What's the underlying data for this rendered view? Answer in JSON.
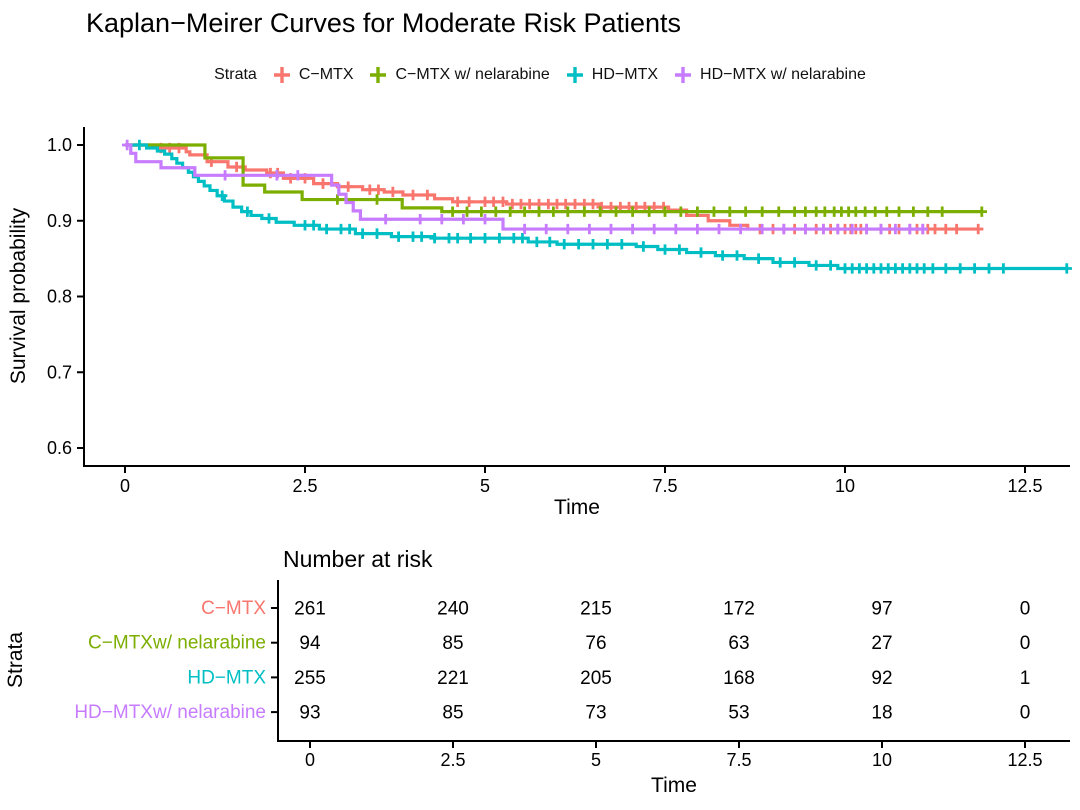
{
  "title": "Kaplan−Meirer Curves for Moderate Risk Patients",
  "legend": {
    "title": "Strata",
    "items": [
      {
        "label": "C−MTX",
        "color": "#F8766D"
      },
      {
        "label": "C−MTX w/ nelarabine",
        "color": "#7CAE00"
      },
      {
        "label": "HD−MTX",
        "color": "#00BFC4"
      },
      {
        "label": "HD−MTX w/ nelarabine",
        "color": "#C77CFF"
      }
    ]
  },
  "chart_data": {
    "type": "line",
    "subtype": "kaplan-meier-step",
    "title": "Kaplan−Meirer Curves for Moderate Risk Patients",
    "xlabel": "Time",
    "ylabel": "Survival probability",
    "xlim": [
      -0.6,
      13.3
    ],
    "ylim": [
      0.58,
      1.01
    ],
    "xticks": [
      0,
      2.5,
      5,
      7.5,
      10,
      12.5
    ],
    "xtick_labels": [
      "0",
      "2.5",
      "5",
      "7.5",
      "10",
      "12.5"
    ],
    "yticks": [
      1.0,
      0.9,
      0.8,
      0.7,
      0.6
    ],
    "ytick_labels": [
      "1.0",
      "0.9",
      "0.8",
      "0.7",
      "0.6"
    ],
    "grid": false,
    "legend_position": "top",
    "series": [
      {
        "name": "C−MTX",
        "color": "#F8766D",
        "steps": [
          [
            0,
            1.0
          ],
          [
            0.45,
            0.996
          ],
          [
            0.85,
            0.991
          ],
          [
            0.9,
            0.987
          ],
          [
            1.14,
            0.978
          ],
          [
            1.43,
            0.971
          ],
          [
            1.67,
            0.967
          ],
          [
            1.97,
            0.963
          ],
          [
            2.2,
            0.956
          ],
          [
            2.62,
            0.949
          ],
          [
            2.95,
            0.945
          ],
          [
            3.3,
            0.941
          ],
          [
            3.6,
            0.938
          ],
          [
            3.86,
            0.934
          ],
          [
            4.3,
            0.929
          ],
          [
            4.55,
            0.925
          ],
          [
            5.3,
            0.922
          ],
          [
            6.6,
            0.918
          ],
          [
            7.55,
            0.914
          ],
          [
            7.8,
            0.907
          ],
          [
            8.1,
            0.9
          ],
          [
            8.4,
            0.894
          ],
          [
            8.65,
            0.889
          ],
          [
            11.85,
            0.889
          ]
        ],
        "censor_times": [
          0.5,
          0.62,
          0.75,
          1.2,
          1.55,
          2.02,
          2.12,
          2.3,
          2.5,
          2.75,
          3.1,
          3.4,
          3.52,
          3.72,
          4.0,
          4.2,
          4.62,
          4.78,
          5.0,
          5.12,
          5.25,
          5.38,
          5.5,
          5.62,
          5.75,
          5.88,
          6.0,
          6.12,
          6.25,
          6.38,
          6.5,
          6.62,
          6.75,
          6.88,
          7.0,
          7.1,
          7.22,
          7.35,
          7.48,
          8.82,
          9.0,
          9.15,
          9.3,
          9.45,
          9.6,
          9.7,
          9.8,
          9.9,
          10.0,
          10.08,
          10.15,
          10.22,
          10.3,
          10.5,
          10.62,
          10.75,
          10.9,
          11.0,
          11.08,
          11.15,
          11.25,
          11.4,
          11.55,
          11.85
        ]
      },
      {
        "name": "C−MTX w/ nelarabine",
        "color": "#7CAE00",
        "steps": [
          [
            0,
            1.0
          ],
          [
            1.11,
            0.983
          ],
          [
            1.64,
            0.947
          ],
          [
            1.94,
            0.938
          ],
          [
            2.46,
            0.928
          ],
          [
            3.85,
            0.917
          ],
          [
            4.4,
            0.912
          ],
          [
            11.9,
            0.912
          ]
        ],
        "censor_times": [
          2.95,
          3.5,
          4.55,
          4.75,
          4.95,
          5.15,
          5.35,
          5.55,
          5.75,
          5.95,
          6.15,
          6.38,
          6.6,
          6.82,
          7.05,
          7.28,
          7.5,
          7.72,
          7.95,
          8.18,
          8.4,
          8.62,
          8.85,
          9.08,
          9.3,
          9.45,
          9.6,
          9.72,
          9.85,
          9.95,
          10.05,
          10.15,
          10.28,
          10.42,
          10.58,
          10.75,
          10.95,
          11.15,
          11.35,
          11.9
        ]
      },
      {
        "name": "HD−MTX",
        "color": "#00BFC4",
        "steps": [
          [
            0,
            1.0
          ],
          [
            0.3,
            0.996
          ],
          [
            0.45,
            0.992
          ],
          [
            0.55,
            0.988
          ],
          [
            0.65,
            0.982
          ],
          [
            0.72,
            0.976
          ],
          [
            0.8,
            0.97
          ],
          [
            0.88,
            0.964
          ],
          [
            0.95,
            0.958
          ],
          [
            1.02,
            0.952
          ],
          [
            1.1,
            0.946
          ],
          [
            1.18,
            0.94
          ],
          [
            1.28,
            0.933
          ],
          [
            1.38,
            0.926
          ],
          [
            1.5,
            0.918
          ],
          [
            1.62,
            0.912
          ],
          [
            1.75,
            0.907
          ],
          [
            1.9,
            0.903
          ],
          [
            2.1,
            0.898
          ],
          [
            2.35,
            0.894
          ],
          [
            2.7,
            0.889
          ],
          [
            3.2,
            0.883
          ],
          [
            3.7,
            0.879
          ],
          [
            4.3,
            0.877
          ],
          [
            5.6,
            0.872
          ],
          [
            6.0,
            0.869
          ],
          [
            7.1,
            0.866
          ],
          [
            7.4,
            0.862
          ],
          [
            7.8,
            0.858
          ],
          [
            8.2,
            0.854
          ],
          [
            8.6,
            0.85
          ],
          [
            9.0,
            0.845
          ],
          [
            9.5,
            0.841
          ],
          [
            9.9,
            0.837
          ],
          [
            13.1,
            0.837
          ]
        ],
        "censor_times": [
          0.2,
          1.35,
          1.7,
          2.0,
          2.5,
          2.62,
          2.8,
          3.0,
          3.12,
          3.3,
          3.5,
          3.8,
          4.0,
          4.12,
          4.3,
          4.5,
          4.62,
          4.8,
          5.0,
          5.2,
          5.4,
          5.52,
          5.72,
          5.9,
          6.1,
          6.3,
          6.5,
          6.7,
          6.9,
          7.2,
          7.5,
          7.7,
          8.0,
          8.3,
          8.5,
          8.8,
          9.1,
          9.3,
          9.6,
          9.8,
          10.0,
          10.1,
          10.2,
          10.3,
          10.4,
          10.5,
          10.6,
          10.7,
          10.8,
          10.9,
          11.0,
          11.1,
          11.22,
          11.4,
          11.6,
          11.8,
          12.0,
          12.2,
          13.08
        ]
      },
      {
        "name": "HD−MTX w/ nelarabine",
        "color": "#C77CFF",
        "steps": [
          [
            0,
            1.0
          ],
          [
            0.08,
            0.989
          ],
          [
            0.15,
            0.978
          ],
          [
            0.5,
            0.97
          ],
          [
            0.97,
            0.96
          ],
          [
            2.87,
            0.947
          ],
          [
            2.97,
            0.935
          ],
          [
            3.07,
            0.924
          ],
          [
            3.17,
            0.913
          ],
          [
            3.27,
            0.902
          ],
          [
            5.25,
            0.889
          ],
          [
            11.08,
            0.889
          ]
        ],
        "censor_times": [
          0.03,
          1.39,
          2.11,
          2.4,
          3.62,
          4.1,
          4.4,
          4.7,
          5.0,
          5.55,
          5.85,
          6.15,
          6.45,
          6.75,
          7.05,
          7.35,
          7.65,
          7.95,
          8.25,
          8.55,
          8.85,
          9.15,
          9.45,
          9.7,
          9.9,
          10.1,
          10.3,
          10.5,
          10.7,
          10.9,
          11.08
        ]
      }
    ],
    "risk_table": {
      "title": "Number at risk",
      "ylabel": "Strata",
      "xlabel": "Time",
      "times": [
        0,
        2.5,
        5,
        7.5,
        10,
        12.5
      ],
      "time_labels": [
        "0",
        "2.5",
        "5",
        "7.5",
        "10",
        "12.5"
      ],
      "rows": [
        {
          "label": "C−MTX",
          "color": "#F8766D",
          "values": [
            "261",
            "240",
            "215",
            "172",
            "97",
            "0"
          ]
        },
        {
          "label": "C−MTXw/ nelarabine",
          "color": "#7CAE00",
          "values": [
            "94",
            "85",
            "76",
            "63",
            "27",
            "0"
          ]
        },
        {
          "label": "HD−MTX",
          "color": "#00BFC4",
          "values": [
            "255",
            "221",
            "205",
            "168",
            "92",
            "1"
          ]
        },
        {
          "label": "HD−MTXw/ nelarabine",
          "color": "#C77CFF",
          "values": [
            "93",
            "85",
            "73",
            "53",
            "18",
            "0"
          ]
        }
      ]
    }
  }
}
